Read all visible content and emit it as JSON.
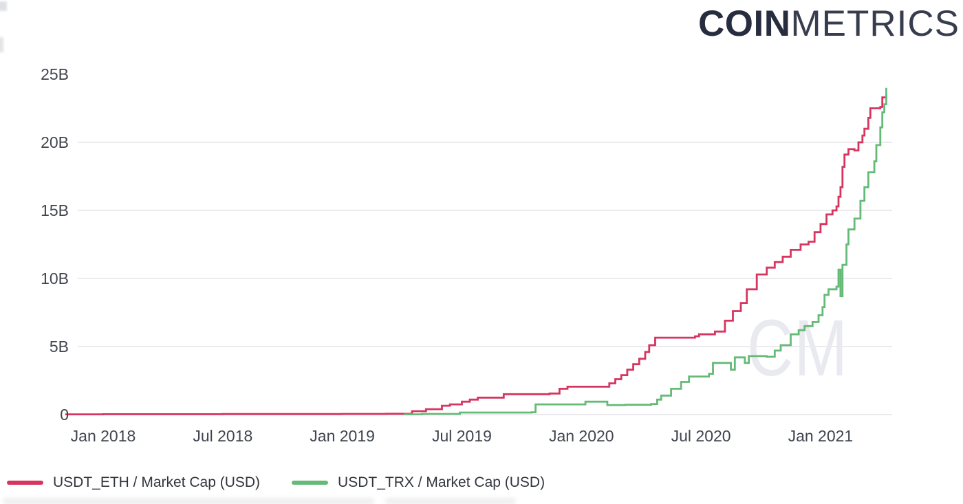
{
  "logo": {
    "bold": "COIN",
    "light": "METRICS"
  },
  "watermark": "CM",
  "legend": {
    "items": [
      {
        "label": "USDT_ETH / Market Cap (USD)",
        "color": "#d63560"
      },
      {
        "label": "USDT_TRX / Market Cap (USD)",
        "color": "#65ba77"
      }
    ]
  },
  "chart_data": {
    "type": "line",
    "title": "",
    "xlabel": "",
    "ylabel": "",
    "grid": "horizontal-only",
    "legend_position": "bottom-left",
    "x_unit": "months since Jan 2018 (fractional)",
    "xlim": [
      -1.9,
      39.6
    ],
    "ylim": [
      0,
      25.5
    ],
    "value_unit": "billions USD",
    "x_ticks": [
      {
        "label": "Jan 2018",
        "m": 0
      },
      {
        "label": "Jul 2018",
        "m": 6
      },
      {
        "label": "Jan 2019",
        "m": 12
      },
      {
        "label": "Jul 2019",
        "m": 18
      },
      {
        "label": "Jan 2020",
        "m": 24
      },
      {
        "label": "Jul 2020",
        "m": 30
      },
      {
        "label": "Jan 2021",
        "m": 36
      }
    ],
    "y_ticks": [
      {
        "label": "0",
        "v": 0
      },
      {
        "label": "5B",
        "v": 5
      },
      {
        "label": "10B",
        "v": 10
      },
      {
        "label": "15B",
        "v": 15
      },
      {
        "label": "20B",
        "v": 20
      },
      {
        "label": "25B",
        "v": 25
      }
    ],
    "grid_values": [
      5,
      10,
      15,
      20
    ],
    "series": [
      {
        "name": "USDT_ETH / Market Cap (USD)",
        "color": "#d63560",
        "points": [
          [
            -1.9,
            0.02
          ],
          [
            0,
            0.03
          ],
          [
            6,
            0.04
          ],
          [
            12,
            0.05
          ],
          [
            14.2,
            0.06
          ],
          [
            15.5,
            0.25
          ],
          [
            16.2,
            0.4
          ],
          [
            17.0,
            0.65
          ],
          [
            17.4,
            0.75
          ],
          [
            18.0,
            0.95
          ],
          [
            18.4,
            1.1
          ],
          [
            18.8,
            1.25
          ],
          [
            20.1,
            1.5
          ],
          [
            22.4,
            1.55
          ],
          [
            22.9,
            1.9
          ],
          [
            23.3,
            2.05
          ],
          [
            25.4,
            2.3
          ],
          [
            25.7,
            2.6
          ],
          [
            26.0,
            2.9
          ],
          [
            26.3,
            3.3
          ],
          [
            26.6,
            3.7
          ],
          [
            26.9,
            4.1
          ],
          [
            27.2,
            4.6
          ],
          [
            27.4,
            5.1
          ],
          [
            27.7,
            5.65
          ],
          [
            29.7,
            5.75
          ],
          [
            29.9,
            5.9
          ],
          [
            30.7,
            6.1
          ],
          [
            31.2,
            6.9
          ],
          [
            31.6,
            7.6
          ],
          [
            32.0,
            8.2
          ],
          [
            32.3,
            9.2
          ],
          [
            32.8,
            10.3
          ],
          [
            33.3,
            10.8
          ],
          [
            33.7,
            11.2
          ],
          [
            34.1,
            11.6
          ],
          [
            34.5,
            12.1
          ],
          [
            35.0,
            12.5
          ],
          [
            35.4,
            12.7
          ],
          [
            35.7,
            13.4
          ],
          [
            36.0,
            14.0
          ],
          [
            36.3,
            14.7
          ],
          [
            36.6,
            15.0
          ],
          [
            36.8,
            15.3
          ],
          [
            36.9,
            16.0
          ],
          [
            37.0,
            16.7
          ],
          [
            37.1,
            18.2
          ],
          [
            37.2,
            19.1
          ],
          [
            37.4,
            19.5
          ],
          [
            37.7,
            19.4
          ],
          [
            37.9,
            20.0
          ],
          [
            38.1,
            20.5
          ],
          [
            38.2,
            21.0
          ],
          [
            38.4,
            21.8
          ],
          [
            38.5,
            22.5
          ],
          [
            39.0,
            22.6
          ],
          [
            39.1,
            23.3
          ],
          [
            39.3,
            23.5
          ]
        ]
      },
      {
        "name": "USDT_TRX / Market Cap (USD)",
        "color": "#65ba77",
        "points": [
          [
            15.1,
            0.02
          ],
          [
            16.0,
            0.05
          ],
          [
            17.9,
            0.15
          ],
          [
            21.5,
            0.17
          ],
          [
            21.7,
            0.75
          ],
          [
            24.2,
            0.95
          ],
          [
            25.3,
            0.7
          ],
          [
            26.2,
            0.72
          ],
          [
            27.5,
            0.78
          ],
          [
            27.8,
            1.1
          ],
          [
            28.0,
            1.4
          ],
          [
            28.5,
            1.9
          ],
          [
            29.0,
            2.4
          ],
          [
            29.4,
            2.8
          ],
          [
            30.4,
            3.0
          ],
          [
            30.6,
            3.8
          ],
          [
            31.5,
            3.3
          ],
          [
            31.7,
            4.2
          ],
          [
            32.2,
            3.8
          ],
          [
            32.4,
            4.3
          ],
          [
            33.3,
            4.25
          ],
          [
            33.7,
            4.7
          ],
          [
            34.0,
            5.1
          ],
          [
            34.5,
            5.9
          ],
          [
            34.9,
            6.2
          ],
          [
            35.2,
            6.5
          ],
          [
            35.6,
            6.8
          ],
          [
            35.9,
            7.3
          ],
          [
            36.1,
            7.9
          ],
          [
            36.2,
            8.8
          ],
          [
            36.4,
            9.2
          ],
          [
            36.8,
            9.4
          ],
          [
            36.9,
            10.65
          ],
          [
            37.0,
            8.7
          ],
          [
            37.1,
            11.0
          ],
          [
            37.3,
            12.5
          ],
          [
            37.4,
            13.6
          ],
          [
            37.7,
            14.4
          ],
          [
            38.0,
            15.7
          ],
          [
            38.2,
            16.7
          ],
          [
            38.4,
            17.8
          ],
          [
            38.7,
            18.6
          ],
          [
            38.8,
            19.8
          ],
          [
            39.0,
            21.1
          ],
          [
            39.1,
            22.2
          ],
          [
            39.2,
            22.8
          ],
          [
            39.3,
            24.0
          ]
        ]
      }
    ]
  }
}
